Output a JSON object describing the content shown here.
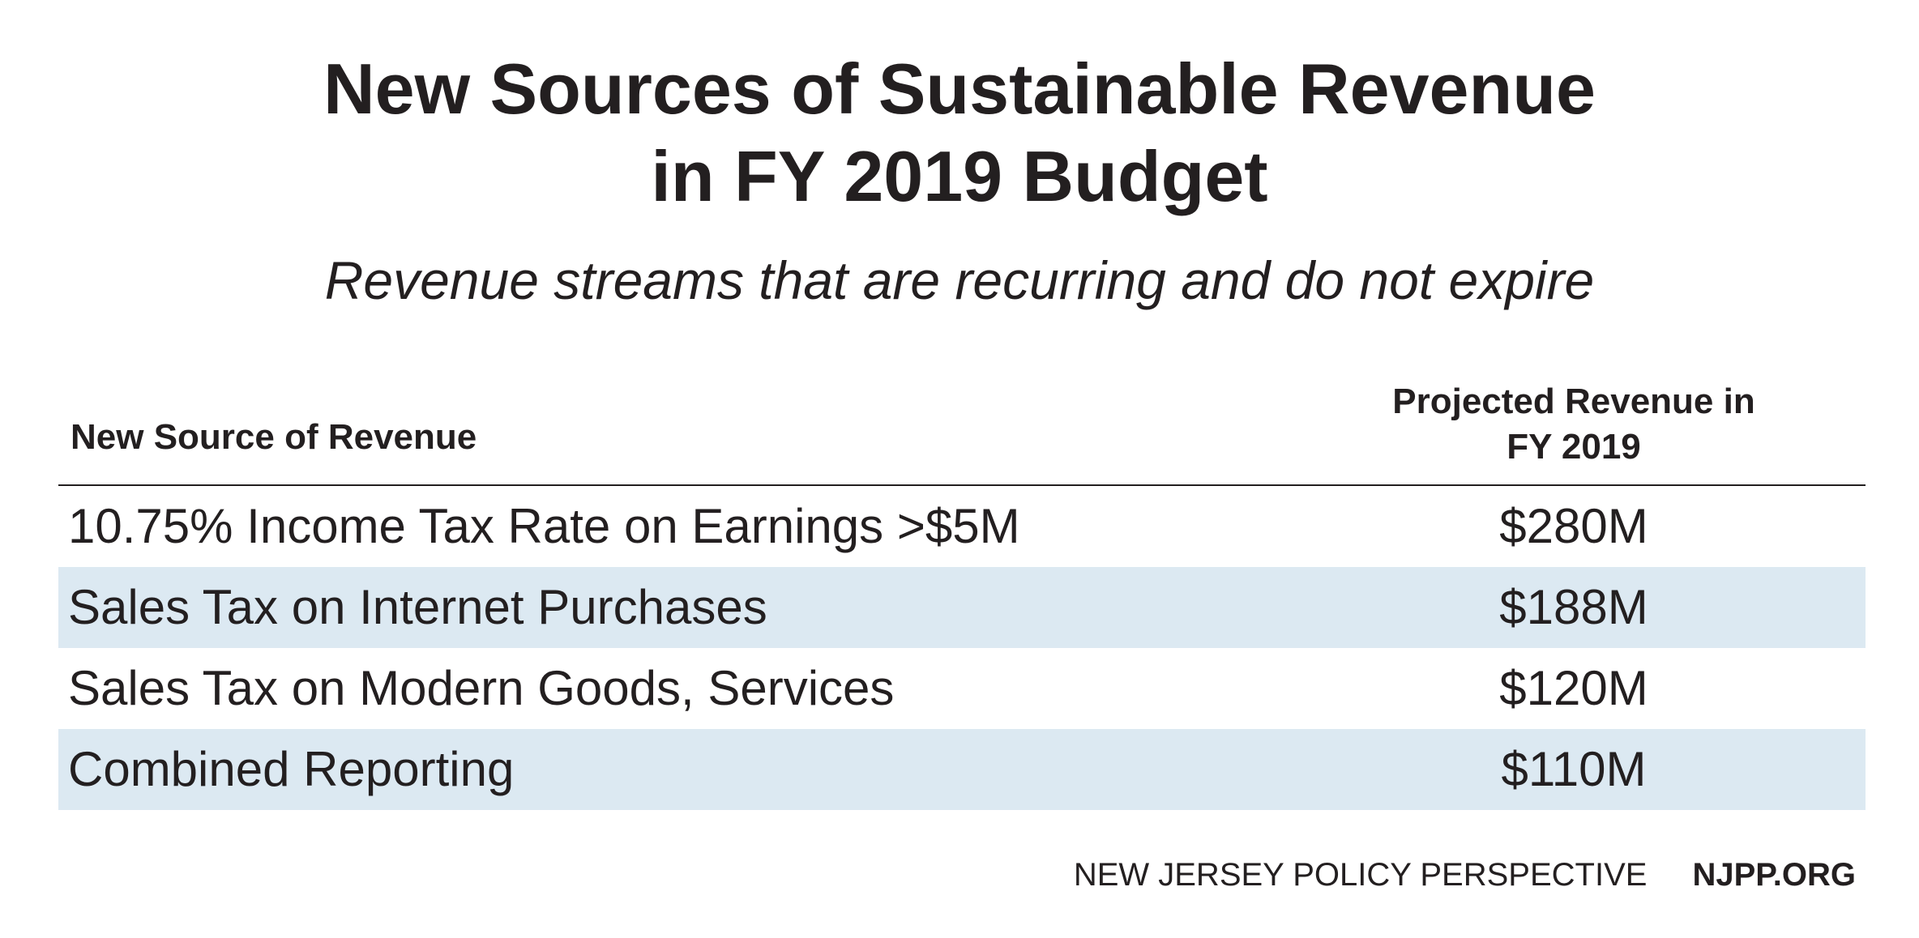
{
  "chart_data": {
    "type": "table",
    "title": [
      "New Sources of Sustainable Revenue",
      "in FY 2019 Budget"
    ],
    "subtitle": "Revenue streams that are recurring and do not expire",
    "columns": {
      "source": "New Source of Revenue",
      "value": [
        "Projected Revenue in",
        "FY 2019"
      ]
    },
    "rows": [
      {
        "source": "10.75% Income Tax Rate on Earnings >$5M",
        "value": "$280M",
        "shaded": false
      },
      {
        "source": "Sales Tax on Internet Purchases",
        "value": "$188M",
        "shaded": true
      },
      {
        "source": "Sales Tax on Modern Goods, Services",
        "value": "$120M",
        "shaded": false
      },
      {
        "source": "Combined Reporting",
        "value": "$110M",
        "shaded": true
      }
    ],
    "row_shade_color": "#dce9f2"
  },
  "footer": {
    "organization": "NEW JERSEY POLICY PERSPECTIVE",
    "website": "NJPP.ORG"
  }
}
